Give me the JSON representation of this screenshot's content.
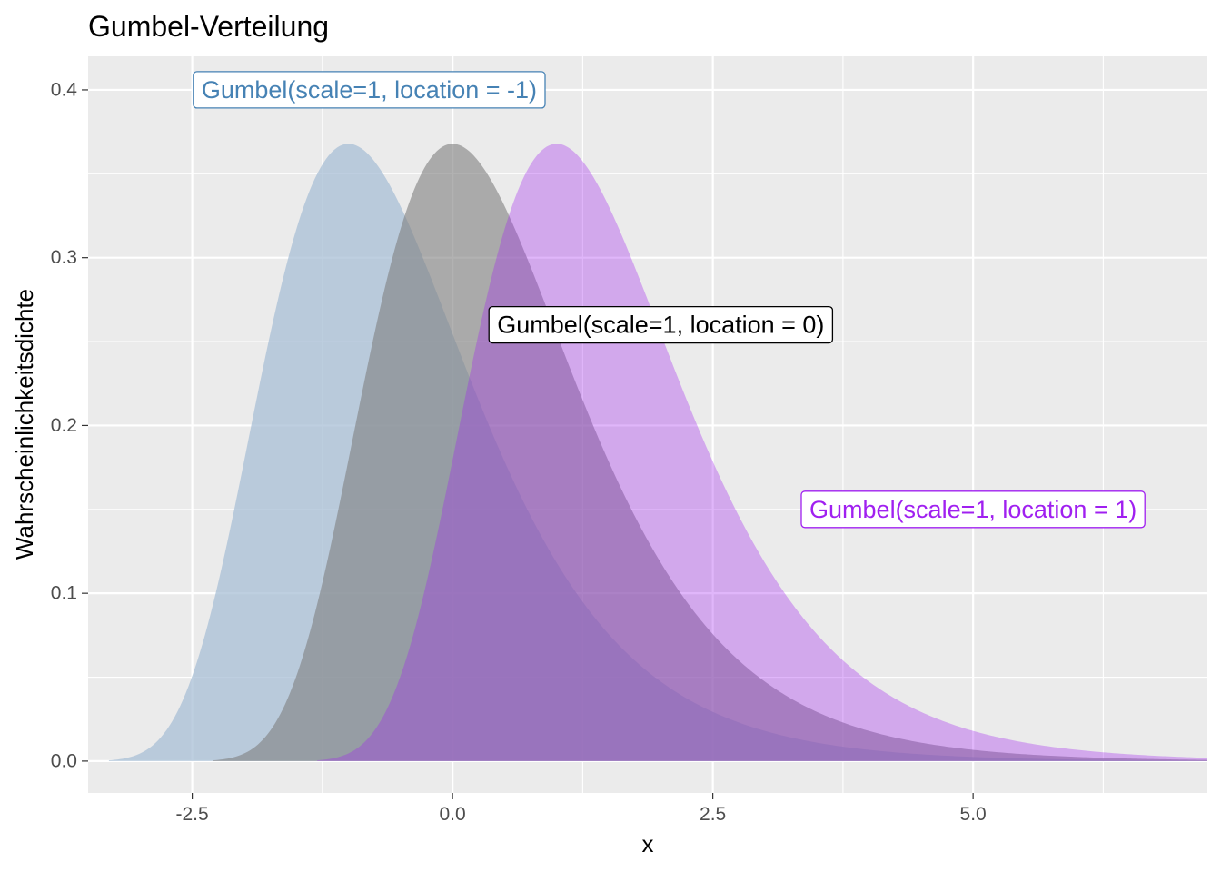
{
  "chart_data": {
    "type": "area",
    "title": "Gumbel-Verteilung",
    "xlabel": "x",
    "ylabel": "Wahrscheinlichkeitsdichte",
    "xlim": [
      -3.5,
      7.25
    ],
    "ylim": [
      -0.019,
      0.42
    ],
    "x_ticks": [
      -2.5,
      0.0,
      2.5,
      5.0
    ],
    "x_tick_labels": [
      "-2.5",
      "0.0",
      "2.5",
      "5.0"
    ],
    "y_ticks": [
      0.0,
      0.1,
      0.2,
      0.3,
      0.4
    ],
    "y_tick_labels": [
      "0.0",
      "0.1",
      "0.2",
      "0.3",
      "0.4"
    ],
    "grid": true,
    "panel_background": "#ebebeb",
    "series": [
      {
        "distribution": "Gumbel",
        "scale": 1,
        "location": -1,
        "x_range": [
          -3.3,
          7.25
        ],
        "fill_color": "#a8bfd6",
        "fill_opacity": 0.75,
        "annotation": {
          "text": "Gumbel(scale=1, location = -1)",
          "x": -0.8,
          "y": 0.4,
          "color": "#4682b4"
        }
      },
      {
        "distribution": "Gumbel",
        "scale": 1,
        "location": 0,
        "x_range": [
          -2.3,
          7.25
        ],
        "fill_color": "#7f7f7f",
        "fill_opacity": 0.6,
        "annotation": {
          "text": "Gumbel(scale=1, location = 0)",
          "x": 2.0,
          "y": 0.26,
          "color": "#000000"
        }
      },
      {
        "distribution": "Gumbel",
        "scale": 1,
        "location": 1,
        "x_range": [
          -1.3,
          7.25
        ],
        "fill_color": "#a020f0",
        "fill_opacity": 0.33,
        "annotation": {
          "text": "Gumbel(scale=1, location = 1)",
          "x": 5.0,
          "y": 0.15,
          "color": "#a020f0"
        }
      }
    ]
  }
}
